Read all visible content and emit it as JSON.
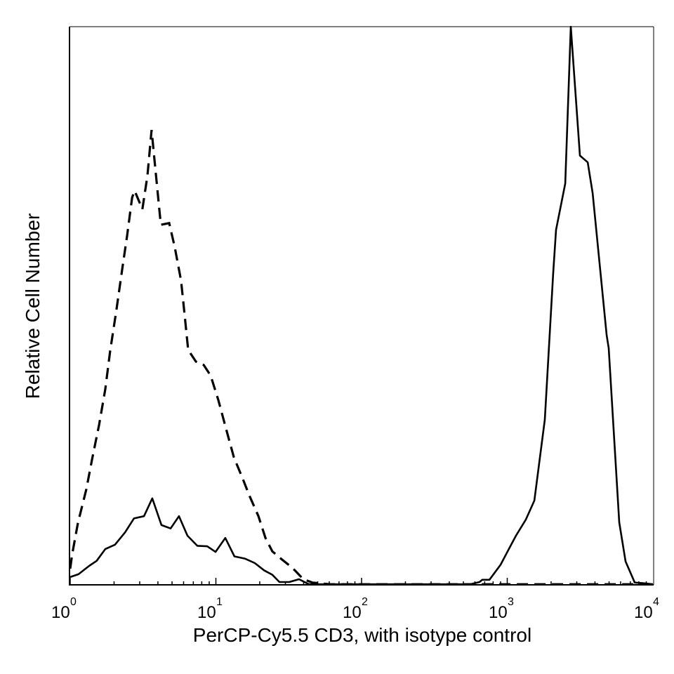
{
  "chart_data": {
    "type": "line",
    "title": "",
    "xlabel": "PerCP-Cy5.5 CD3, with isotype control",
    "ylabel": "Relative Cell Number",
    "xscale": "log",
    "xlim": [
      1,
      10000
    ],
    "ylim": [
      0,
      100
    ],
    "grid": false,
    "legend": "none",
    "x_ticks": [
      {
        "base": "10",
        "exp": "0",
        "value": 1
      },
      {
        "base": "10",
        "exp": "1",
        "value": 10
      },
      {
        "base": "10",
        "exp": "2",
        "value": 100
      },
      {
        "base": "10",
        "exp": "3",
        "value": 1000
      },
      {
        "base": "10",
        "exp": "4",
        "value": 10000
      }
    ],
    "series": [
      {
        "style": "solid",
        "color": "#000000",
        "x": [
          1.0,
          1.14,
          1.35,
          1.52,
          1.74,
          2.03,
          2.38,
          2.74,
          3.21,
          3.66,
          4.23,
          4.89,
          5.58,
          6.38,
          7.45,
          8.71,
          9.95,
          11.6,
          13.4,
          15.8,
          18.5,
          21.4,
          24.4,
          27.3,
          31.9,
          37.2,
          43.5,
          84.7,
          257,
          558,
          645,
          674,
          754,
          900,
          1016,
          1148,
          1342,
          1535,
          1811,
          2069,
          2163,
          2361,
          2500,
          2731,
          3155,
          3565,
          3853,
          4811,
          4968,
          5871,
          6484,
          7499,
          8472,
          10000
        ],
        "y": [
          1.4,
          1.9,
          3.4,
          4.3,
          6.4,
          7.2,
          9.4,
          11.9,
          12.3,
          15.5,
          10.7,
          10.1,
          12.3,
          8.8,
          7.0,
          6.9,
          5.9,
          8.4,
          5.1,
          4.7,
          3.9,
          2.6,
          1.8,
          0.5,
          0.5,
          1.0,
          0.1,
          0.1,
          0.1,
          0.1,
          0.5,
          0.9,
          0.9,
          3.6,
          6.2,
          8.8,
          11.7,
          15.1,
          29.6,
          56.0,
          63.6,
          68.6,
          71.9,
          100,
          76.9,
          75.7,
          70.2,
          44.7,
          42.4,
          11.2,
          4.2,
          0.4,
          0.3,
          0.1
        ]
      },
      {
        "style": "dashed",
        "color": "#000000",
        "x": [
          1.0,
          1.03,
          1.13,
          1.29,
          1.41,
          1.58,
          1.74,
          1.88,
          2.08,
          2.27,
          2.46,
          2.66,
          2.77,
          3.13,
          3.39,
          3.62,
          3.87,
          4.19,
          4.78,
          5.22,
          5.77,
          6.11,
          6.45,
          7.29,
          8.24,
          9.2,
          10.4,
          11.9,
          13.3,
          15.2,
          16.9,
          19.6,
          21.9,
          24.4,
          27.9,
          31.9,
          34.8,
          39.8,
          46.0,
          60.7,
          10000
        ],
        "y": [
          2.9,
          5.4,
          11.1,
          17.1,
          22.4,
          28.7,
          35.0,
          41.9,
          49.4,
          56.4,
          62.6,
          69.4,
          70.6,
          67.3,
          73.3,
          81.5,
          73.6,
          64.5,
          64.8,
          60.5,
          54.5,
          48.2,
          42.1,
          40.0,
          39.4,
          37.5,
          33.1,
          27.4,
          22.8,
          19.2,
          16.1,
          12.3,
          8.4,
          6.0,
          4.7,
          3.5,
          2.6,
          1.0,
          0.4,
          0.1,
          0.1
        ]
      }
    ]
  }
}
